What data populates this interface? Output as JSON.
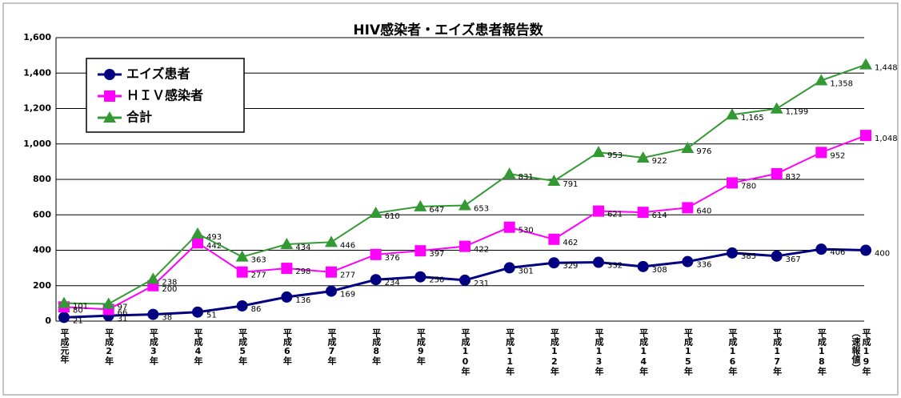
{
  "chart_data": {
    "type": "line",
    "title": "HIV感染者・エイズ患者報告数",
    "categories": [
      "平成元年",
      "平成2年",
      "平成3年",
      "平成4年",
      "平成5年",
      "平成6年",
      "平成7年",
      "平成8年",
      "平成9年",
      "平成10年",
      "平成11年",
      "平成12年",
      "平成13年",
      "平成14年",
      "平成15年",
      "平成16年",
      "平成17年",
      "平成18年",
      "平成19年（速報値）"
    ],
    "series": [
      {
        "name": "エイズ患者",
        "color": "#000080",
        "marker": "circle",
        "values": [
          21,
          31,
          38,
          51,
          86,
          136,
          169,
          234,
          250,
          231,
          301,
          329,
          332,
          308,
          336,
          385,
          367,
          406,
          400
        ]
      },
      {
        "name": "ＨＩＶ感染者",
        "color": "#ff00ff",
        "marker": "square",
        "values": [
          80,
          66,
          200,
          442,
          277,
          298,
          277,
          376,
          397,
          422,
          530,
          462,
          621,
          614,
          640,
          780,
          832,
          952,
          1048
        ],
        "value_labels": [
          "80",
          "66",
          "200",
          "442",
          "277",
          "298",
          "277",
          "376",
          "397",
          "422",
          "530",
          "462",
          "621",
          "614",
          "640",
          "780",
          "832",
          "952",
          "1,048"
        ]
      },
      {
        "name": "合計",
        "color": "#339933",
        "marker": "triangle",
        "values": [
          101,
          97,
          238,
          493,
          363,
          434,
          446,
          610,
          647,
          653,
          831,
          791,
          953,
          922,
          976,
          1165,
          1199,
          1358,
          1448
        ],
        "value_labels": [
          "101",
          "97",
          "238",
          "493",
          "363",
          "434",
          "446",
          "610",
          "647",
          "653",
          "831",
          "791",
          "953",
          "922",
          "976",
          "1,165",
          "1,199",
          "1,358",
          "1,448"
        ]
      }
    ],
    "ylim": [
      0,
      1600
    ],
    "yticks": [
      0,
      200,
      400,
      600,
      800,
      {
        "value": 1000,
        "label": "1,000"
      },
      {
        "value": 1200,
        "label": "1,200"
      },
      {
        "value": 1400,
        "label": "1,400"
      },
      {
        "value": 1600,
        "label": "1,600"
      }
    ],
    "grid": true,
    "legend": "upper left"
  }
}
